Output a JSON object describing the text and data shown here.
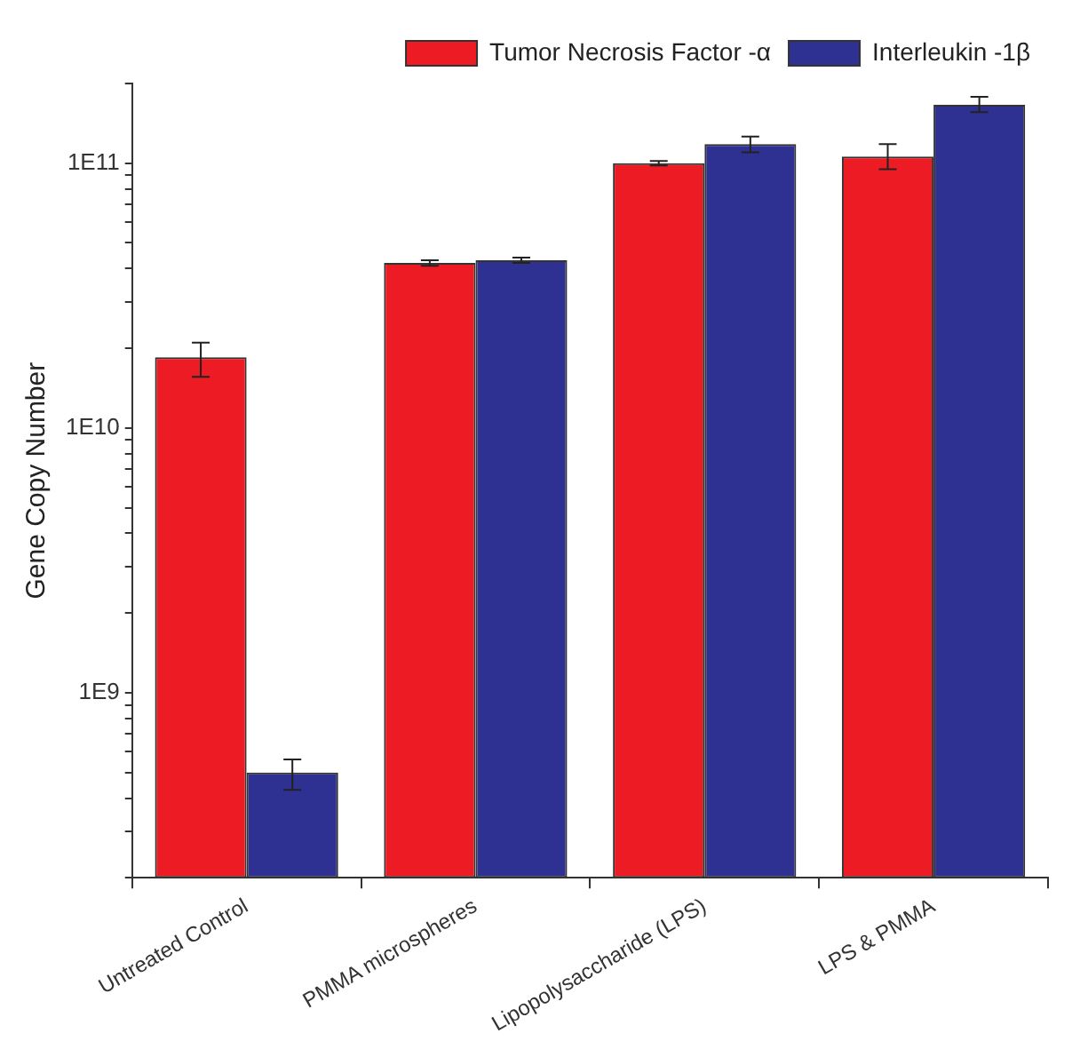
{
  "chart_data": {
    "type": "bar",
    "ylabel": "Gene Copy Number",
    "categories": [
      "Untreated Control",
      "PMMA microspheres",
      "Lipopolysaccharide (LPS)",
      "LPS & PMMA"
    ],
    "series": [
      {
        "name": "Tumor Necrosis Factor -α",
        "color": "#ed1c24",
        "values": [
          18500000000.0,
          42000000000.0,
          100000000000.0,
          106000000000.0
        ],
        "errors": [
          [
            15600000000.0,
            21000000000.0
          ],
          [
            41000000000.0,
            43000000000.0
          ],
          [
            98000000000.0,
            102000000000.0
          ],
          [
            95000000000.0,
            118000000000.0
          ]
        ]
      },
      {
        "name": "Interleukin -1β",
        "color": "#2e3192",
        "values": [
          500000000.0,
          43000000000.0,
          118000000000.0,
          166000000000.0
        ],
        "errors": [
          [
            430000000.0,
            560000000.0
          ],
          [
            42000000000.0,
            44000000000.0
          ],
          [
            110000000000.0,
            126000000000.0
          ],
          [
            156000000000.0,
            178000000000.0
          ]
        ]
      }
    ],
    "log": "y",
    "ylim": [
      200000000.0,
      200000000000.0
    ],
    "yticks": [
      {
        "value": 200000000.0,
        "label": null
      },
      {
        "value": 300000000.0,
        "label": null
      },
      {
        "value": 400000000.0,
        "label": null
      },
      {
        "value": 500000000.0,
        "label": null
      },
      {
        "value": 600000000.0,
        "label": null
      },
      {
        "value": 700000000.0,
        "label": null
      },
      {
        "value": 800000000.0,
        "label": null
      },
      {
        "value": 900000000.0,
        "label": null
      },
      {
        "value": 1000000000.0,
        "label": "1E9"
      },
      {
        "value": 2000000000.0,
        "label": null
      },
      {
        "value": 3000000000.0,
        "label": null
      },
      {
        "value": 4000000000.0,
        "label": null
      },
      {
        "value": 5000000000.0,
        "label": null
      },
      {
        "value": 6000000000.0,
        "label": null
      },
      {
        "value": 7000000000.0,
        "label": null
      },
      {
        "value": 8000000000.0,
        "label": null
      },
      {
        "value": 9000000000.0,
        "label": null
      },
      {
        "value": 10000000000.0,
        "label": "1E10"
      },
      {
        "value": 20000000000.0,
        "label": null
      },
      {
        "value": 30000000000.0,
        "label": null
      },
      {
        "value": 40000000000.0,
        "label": null
      },
      {
        "value": 50000000000.0,
        "label": null
      },
      {
        "value": 60000000000.0,
        "label": null
      },
      {
        "value": 70000000000.0,
        "label": null
      },
      {
        "value": 80000000000.0,
        "label": null
      },
      {
        "value": 90000000000.0,
        "label": null
      },
      {
        "value": 100000000000.0,
        "label": "1E11"
      },
      {
        "value": 200000000000.0,
        "label": null
      }
    ],
    "grid": false,
    "legend": "top right"
  }
}
